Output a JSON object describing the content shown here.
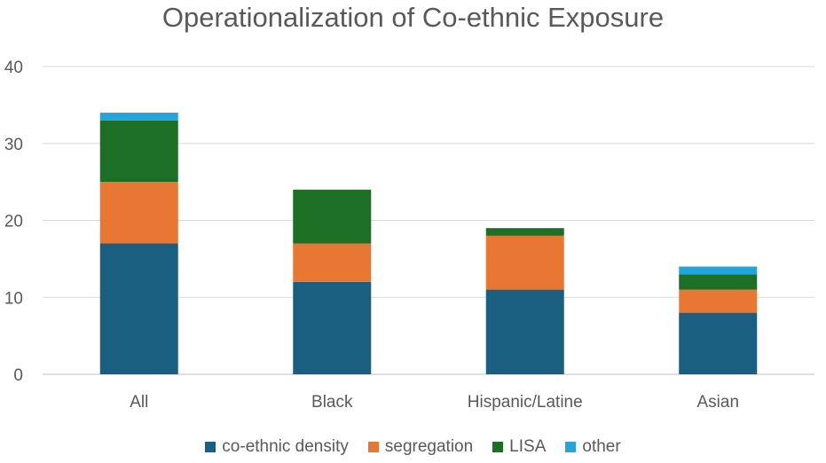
{
  "chart_data": {
    "type": "bar",
    "stacked": true,
    "title": "Operationalization of Co-ethnic Exposure",
    "xlabel": "",
    "ylabel": "",
    "categories": [
      "All",
      "Black",
      "Hispanic/Latine",
      "Asian"
    ],
    "ylim": [
      0,
      40
    ],
    "yticks": [
      0,
      10,
      20,
      30,
      40
    ],
    "grid": true,
    "legend_position": "bottom",
    "series": [
      {
        "name": "co-ethnic density",
        "color": "#1a5f80",
        "values": [
          17,
          12,
          11,
          8
        ]
      },
      {
        "name": "segregation",
        "color": "#e87733",
        "values": [
          8,
          5,
          7,
          3
        ]
      },
      {
        "name": "LISA",
        "color": "#1e6f26",
        "values": [
          8,
          7,
          1,
          2
        ]
      },
      {
        "name": "other",
        "color": "#23a5db",
        "values": [
          1,
          0,
          0,
          1
        ]
      }
    ]
  }
}
